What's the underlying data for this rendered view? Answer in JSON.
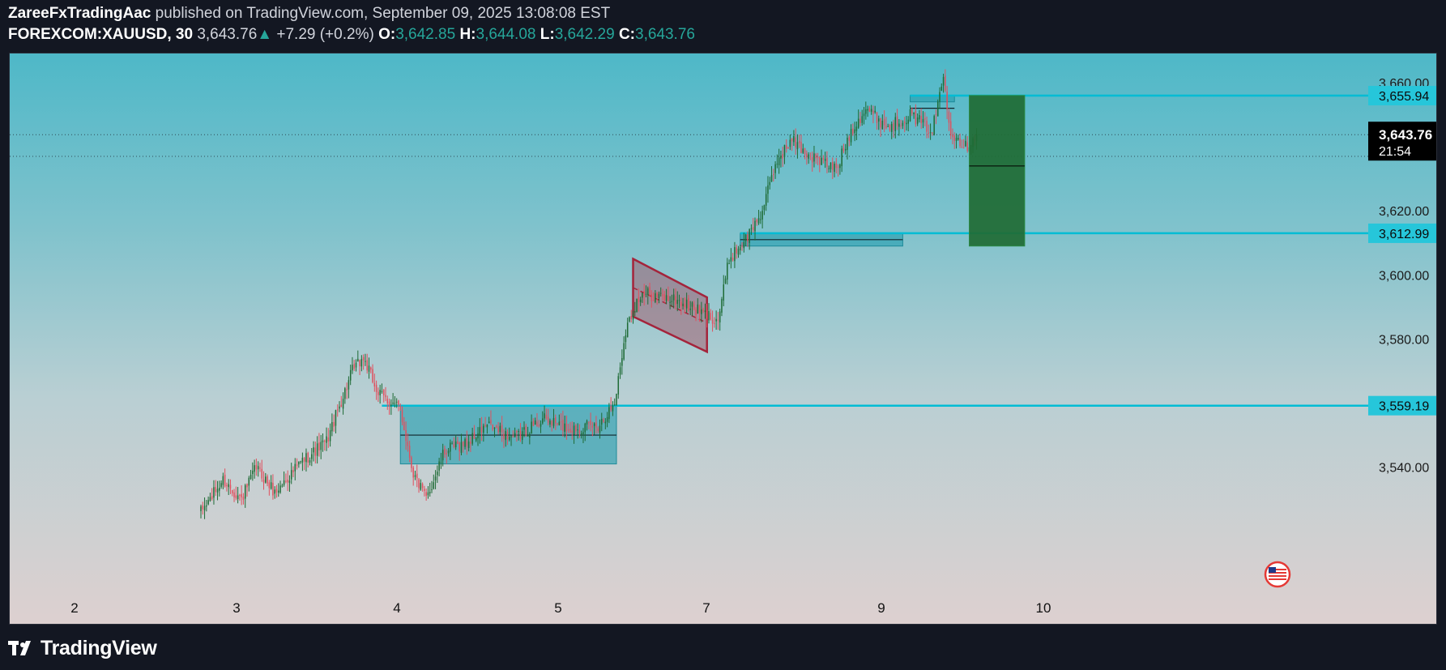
{
  "header": {
    "author": "ZareeFxTradingAac",
    "published_text": "published on TradingView.com, September 09, 2025 13:08:08 EST",
    "symbol": "FOREXCOM:XAUUSD, 30",
    "last": "3,643.76",
    "change": "+7.29 (+0.2%)",
    "o_label": "O:",
    "o_value": "3,642.85",
    "h_label": "H:",
    "h_value": "3,644.08",
    "l_label": "L:",
    "l_value": "3,642.29",
    "c_label": "C:",
    "c_value": "3,643.76"
  },
  "footer": {
    "brand": "TradingView"
  },
  "colors": {
    "up": "#1e6b35",
    "down": "#e0505e",
    "level_line": "#00bcd4",
    "price_tag_bg": "#26c6da",
    "current_tag_bg": "#000000",
    "target_box": "#1f6b34",
    "channel": "#a4243b"
  },
  "chart_data": {
    "type": "candlestick",
    "symbol": "FOREXCOM:XAUUSD",
    "interval": "30",
    "ylim": [
      3520,
      3670
    ],
    "y_ticks": [
      "3,540.00",
      "3,580.00",
      "3,600.00",
      "3,620.00",
      "3,660.00"
    ],
    "y_tick_values": [
      3540,
      3580,
      3600,
      3620,
      3660
    ],
    "x_ticks": [
      "2",
      "3",
      "4",
      "5",
      "7",
      "9",
      "10"
    ],
    "current_price": {
      "label": "3,643.76",
      "value": 3643.76,
      "countdown": "21:54"
    },
    "levels": [
      {
        "label": "3,655.94",
        "value": 3655.94
      },
      {
        "label": "3,612.99",
        "value": 3612.99
      },
      {
        "label": "3,559.19",
        "value": 3559.19
      }
    ],
    "anchors": [
      {
        "t": 0,
        "p": 3526
      },
      {
        "t": 12,
        "p": 3536
      },
      {
        "t": 22,
        "p": 3530
      },
      {
        "t": 30,
        "p": 3540
      },
      {
        "t": 40,
        "p": 3532
      },
      {
        "t": 55,
        "p": 3542
      },
      {
        "t": 68,
        "p": 3548
      },
      {
        "t": 82,
        "p": 3570
      },
      {
        "t": 88,
        "p": 3574
      },
      {
        "t": 96,
        "p": 3563
      },
      {
        "t": 108,
        "p": 3558
      },
      {
        "t": 115,
        "p": 3538
      },
      {
        "t": 122,
        "p": 3530
      },
      {
        "t": 132,
        "p": 3545
      },
      {
        "t": 145,
        "p": 3548
      },
      {
        "t": 155,
        "p": 3553
      },
      {
        "t": 170,
        "p": 3549
      },
      {
        "t": 185,
        "p": 3555
      },
      {
        "t": 200,
        "p": 3552
      },
      {
        "t": 215,
        "p": 3553
      },
      {
        "t": 224,
        "p": 3560
      },
      {
        "t": 230,
        "p": 3583
      },
      {
        "t": 236,
        "p": 3592
      },
      {
        "t": 242,
        "p": 3594
      },
      {
        "t": 258,
        "p": 3592
      },
      {
        "t": 272,
        "p": 3588
      },
      {
        "t": 280,
        "p": 3586
      },
      {
        "t": 286,
        "p": 3605
      },
      {
        "t": 296,
        "p": 3612
      },
      {
        "t": 304,
        "p": 3620
      },
      {
        "t": 312,
        "p": 3636
      },
      {
        "t": 320,
        "p": 3642
      },
      {
        "t": 330,
        "p": 3637
      },
      {
        "t": 344,
        "p": 3633
      },
      {
        "t": 352,
        "p": 3645
      },
      {
        "t": 360,
        "p": 3652
      },
      {
        "t": 372,
        "p": 3646
      },
      {
        "t": 384,
        "p": 3650
      },
      {
        "t": 396,
        "p": 3645
      },
      {
        "t": 402,
        "p": 3662
      },
      {
        "t": 406,
        "p": 3645
      },
      {
        "t": 414,
        "p": 3640
      },
      {
        "t": 420,
        "p": 3643.76
      }
    ],
    "candle_count": 421,
    "zones": [
      {
        "name": "consolidation-zone",
        "t0": 108,
        "t1": 225,
        "p0": 3541,
        "p1": 3559,
        "mid": 3550
      },
      {
        "name": "upper-zone",
        "t0": 384,
        "t1": 408,
        "p0": 3654,
        "p1": 3656,
        "mid": 3652
      },
      {
        "name": "support-zone",
        "t0": 292,
        "t1": 380,
        "p0": 3609,
        "p1": 3612.99,
        "mid": 3611
      }
    ],
    "channel": {
      "upper_start": [
        3603,
        3594
      ],
      "upper_end": [
        3593,
        3594
      ],
      "top": {
        "t0": 234,
        "p0": 3605,
        "t1": 274,
        "p1": 3593
      },
      "bottom": {
        "t0": 234,
        "p0": 3587,
        "t1": 274,
        "p1": 3576
      },
      "mid": {
        "t0": 234,
        "p0": 3596,
        "t1": 274,
        "p1": 3585
      }
    },
    "target_box": {
      "t0": 416,
      "t1": 446,
      "p0": 3609,
      "p1": 3656,
      "mid": 3634
    },
    "level_segments": [
      {
        "value": 3655.94,
        "t0": 384
      },
      {
        "value": 3612.99,
        "t0": 292
      },
      {
        "value": 3559.19,
        "t0": 98
      }
    ],
    "dotted_lines": [
      3643.76,
      3637
    ]
  }
}
